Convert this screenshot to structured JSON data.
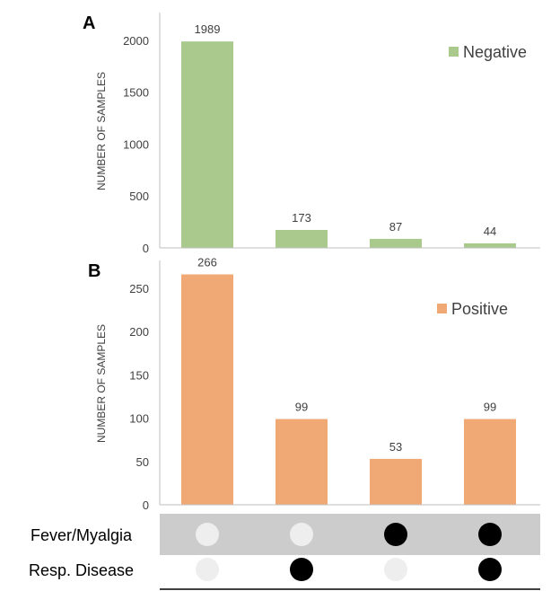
{
  "chart_data": [
    {
      "panel": "A",
      "type": "bar",
      "categories": [
        "None",
        "Resp. Disease",
        "Fever/Myalgia",
        "Fever/Myalgia + Resp. Disease"
      ],
      "values": [
        1989,
        173,
        87,
        44
      ],
      "ylabel": "NUMBER OF SAMPLES",
      "ylim": [
        0,
        2250
      ],
      "yticks": [
        0,
        500,
        1000,
        1500,
        2000
      ],
      "legend": "Negative",
      "legend_position": "top-right",
      "color": "#a9c98d"
    },
    {
      "panel": "B",
      "type": "bar",
      "categories": [
        "None",
        "Resp. Disease",
        "Fever/Myalgia",
        "Fever/Myalgia + Resp. Disease"
      ],
      "values": [
        266,
        99,
        53,
        99
      ],
      "ylabel": "NUMBER  OF SAMPLES",
      "ylim": [
        0,
        280
      ],
      "yticks": [
        0,
        50,
        100,
        150,
        200,
        250
      ],
      "legend": "Positive",
      "legend_position": "top-right",
      "color": "#f0a875"
    }
  ],
  "matrix": {
    "rows": [
      {
        "label": "Fever/Myalgia",
        "present": [
          false,
          false,
          true,
          true
        ],
        "shaded": true
      },
      {
        "label": "Resp. Disease",
        "present": [
          false,
          true,
          false,
          true
        ],
        "shaded": false
      }
    ],
    "band_color": "#cccccc",
    "dot_on_color": "#000000",
    "dot_off_color": "#eeeeee"
  }
}
